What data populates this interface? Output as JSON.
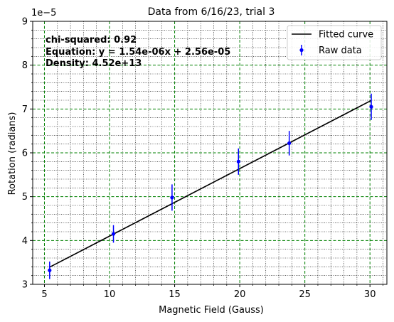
{
  "chart_data": {
    "type": "scatter",
    "title": "Data from 6/16/23, trial 3",
    "xlabel": "Magnetic Field (Gauss)",
    "ylabel": "Rotation (radians)",
    "y_offset_label": "1e−5",
    "xlim": [
      4.1,
      31.3
    ],
    "ylim": [
      3.0,
      9.0
    ],
    "y_scale": 1e-05,
    "x_ticks": [
      5,
      10,
      15,
      20,
      25,
      30
    ],
    "x_tick_labels": [
      "5",
      "10",
      "15",
      "20",
      "25",
      "30"
    ],
    "y_ticks": [
      3,
      4,
      5,
      6,
      7,
      8,
      9
    ],
    "y_tick_labels": [
      "3",
      "4",
      "5",
      "6",
      "7",
      "8",
      "9"
    ],
    "grid": {
      "major": true,
      "minor": true,
      "major_color": "#008000",
      "minor_color": "#000000"
    },
    "annotations": [
      "chi-squared: 0.92",
      "Equation: y = 1.54e-06x + 2.56e-05",
      "Density: 4.52e+13"
    ],
    "legend": {
      "position": "upper-right",
      "entries": [
        "Fitted curve",
        "Raw data"
      ]
    },
    "fit": {
      "name": "Fitted curve",
      "color": "#000000",
      "slope": 0.154,
      "intercept": 2.56,
      "x_range": [
        5.4,
        30.1
      ]
    },
    "series": [
      {
        "name": "Raw data",
        "color": "#0000ff",
        "x": [
          5.4,
          10.3,
          14.8,
          19.9,
          23.8,
          30.1
        ],
        "y": [
          3.32,
          4.15,
          4.98,
          5.8,
          6.22,
          7.05
        ],
        "yerr": [
          0.2,
          0.2,
          0.3,
          0.3,
          0.28,
          0.3
        ]
      }
    ]
  }
}
